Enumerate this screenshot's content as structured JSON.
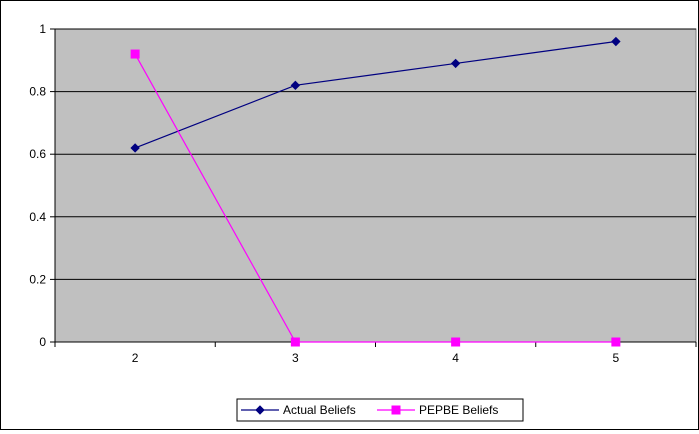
{
  "chart_data": {
    "type": "line",
    "x": [
      2,
      3,
      4,
      5
    ],
    "categories": [
      "2",
      "3",
      "4",
      "5"
    ],
    "series": [
      {
        "name": "Actual Beliefs",
        "values": [
          0.62,
          0.82,
          0.89,
          0.96
        ],
        "color": "#000080",
        "marker": "diamond"
      },
      {
        "name": "PEPBE Beliefs",
        "values": [
          0.92,
          0,
          0,
          0
        ],
        "color": "#FF00FF",
        "marker": "square"
      }
    ],
    "y_ticks": [
      "0",
      "0.2",
      "0.4",
      "0.6",
      "0.8",
      "1"
    ],
    "ylim": [
      0,
      1
    ],
    "grid": true,
    "plot_background": "#C0C0C0",
    "legend_position": "bottom"
  }
}
